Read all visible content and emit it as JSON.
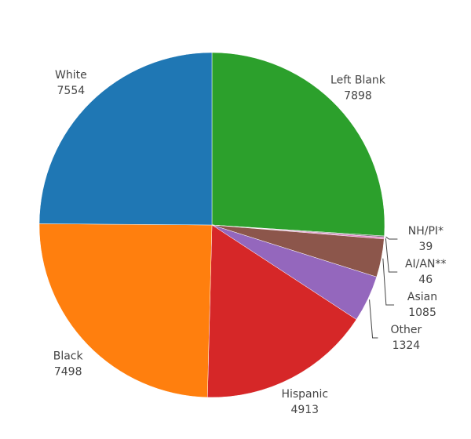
{
  "chart_data": {
    "type": "pie",
    "categories": [
      "Left Blank",
      "NH/PI*",
      "AI/AN**",
      "Asian",
      "Other",
      "Hispanic",
      "Black",
      "White"
    ],
    "values": [
      7898,
      39,
      46,
      1085,
      1324,
      4913,
      7498,
      7554
    ],
    "colors": [
      "#2ca02c",
      "#7f7f7f",
      "#e377c2",
      "#8c564b",
      "#9467bd",
      "#d62728",
      "#ff7f0e",
      "#1f77b4"
    ]
  }
}
